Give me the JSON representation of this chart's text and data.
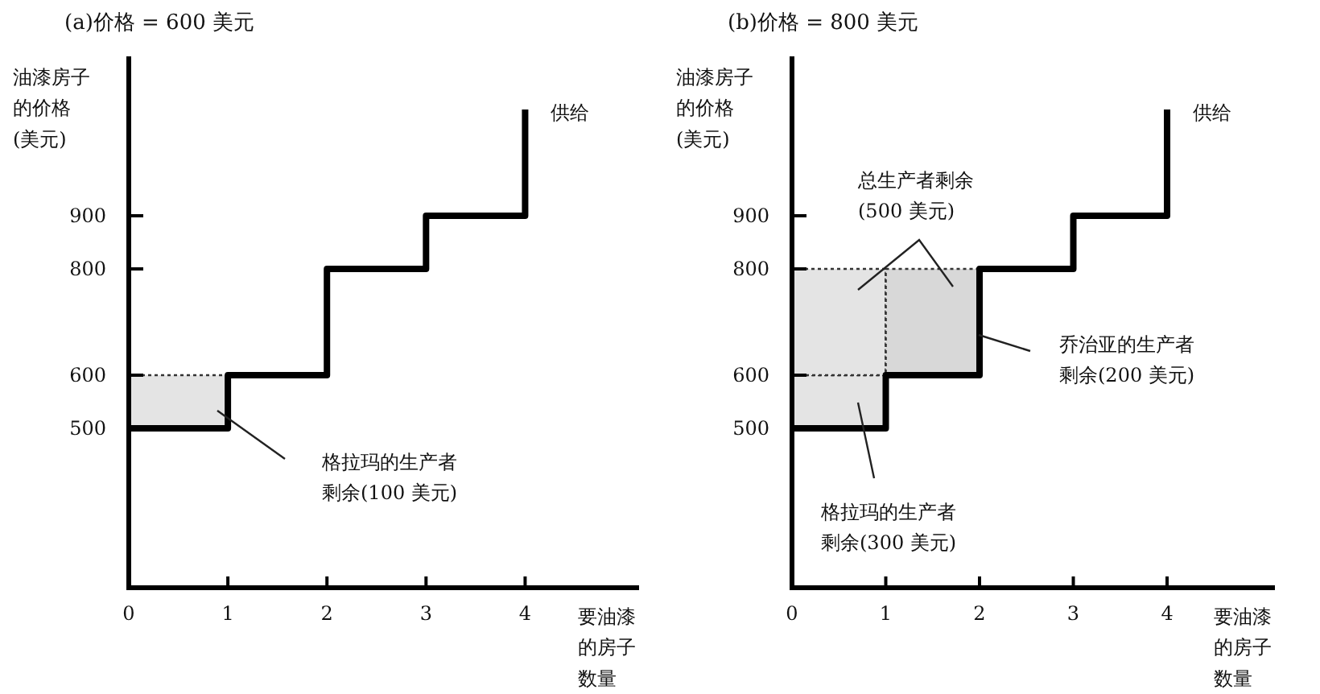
{
  "chart_data": [
    {
      "type": "step",
      "title": "(a)价格 = 600 美元",
      "xlabel": "要油漆的房子数量",
      "ylabel": "油漆房子的价格(美元)",
      "xlim": [
        0,
        5.15
      ],
      "ylim": [
        200,
        1200
      ],
      "xticks": [
        0,
        1,
        2,
        3,
        4
      ],
      "yticks": [
        500,
        600,
        800,
        900
      ],
      "series": [
        {
          "type": "bar",
          "color": "#e4e4e4",
          "x": [
            0.5
          ],
          "values": [
            100
          ],
          "base": [
            500
          ],
          "line_style": "dotted"
        },
        {
          "name": "供给",
          "color": "#000000",
          "x": [
            0,
            1,
            2,
            3,
            4
          ],
          "values": [
            500,
            600,
            800,
            900,
            1100
          ]
        }
      ],
      "annotations": [
        "格拉玛的生产者剩余(100 美元)"
      ]
    },
    {
      "type": "step",
      "title": "(b)价格 = 800 美元",
      "xlabel": "要油漆的房子数量",
      "ylabel": "油漆房子的价格(美元)",
      "xlim": [
        0,
        5.15
      ],
      "ylim": [
        200,
        1200
      ],
      "xticks": [
        0,
        1,
        2,
        3,
        4
      ],
      "yticks": [
        500,
        600,
        800,
        900
      ],
      "series": [
        {
          "type": "bar",
          "color": "#e4e4e4",
          "x": [
            0.5
          ],
          "values": [
            100
          ],
          "base": [
            500
          ],
          "line_style": "dotted"
        },
        {
          "type": "bar",
          "color": "#e4e4e4",
          "x": [
            0.5
          ],
          "values": [
            200
          ],
          "base": [
            600
          ],
          "line_style": "dotted"
        },
        {
          "type": "bar",
          "color": "#d8d8d8",
          "x": [
            1.5
          ],
          "values": [
            200
          ],
          "base": [
            600
          ],
          "line_style": "dotted"
        },
        {
          "name": "供给",
          "color": "#000000",
          "x": [
            0,
            1,
            2,
            3,
            4
          ],
          "values": [
            500,
            600,
            800,
            900,
            1100
          ]
        }
      ],
      "annotations": [
        "总生产者剩余(500 美元)",
        "乔治亚的生产者剩余(200 美元)",
        "格拉玛的生产者剩余(300 美元)"
      ]
    }
  ]
}
